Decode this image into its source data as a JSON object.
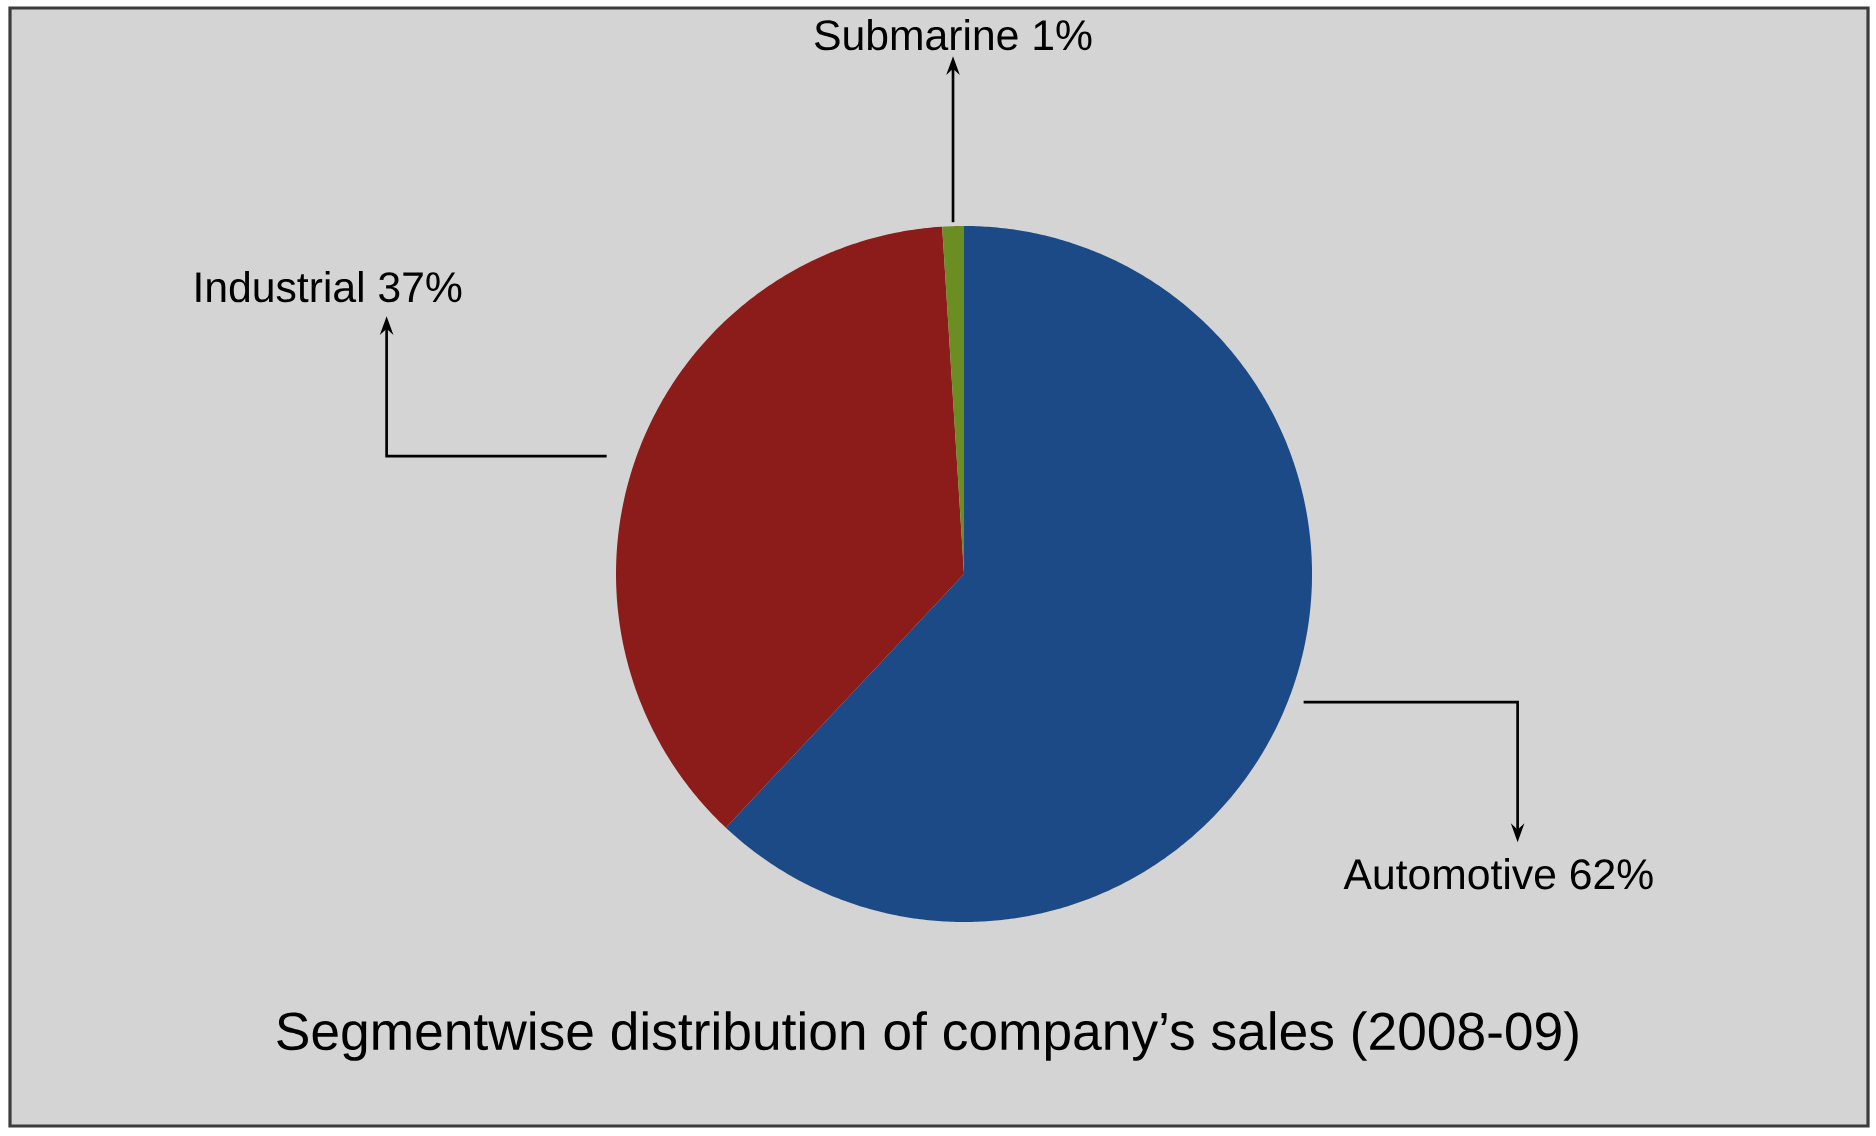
{
  "chart_data": {
    "type": "pie",
    "title": "Segmentwise distribution of company’s sales (2008-09)",
    "categories": [
      "Automotive",
      "Industrial",
      "Submarine"
    ],
    "values": [
      62,
      37,
      1
    ],
    "value_labels": [
      "62%",
      "37%",
      "1%"
    ],
    "colors": [
      "#1b4a87",
      "#8b1c1a",
      "#6b8e23"
    ]
  }
}
